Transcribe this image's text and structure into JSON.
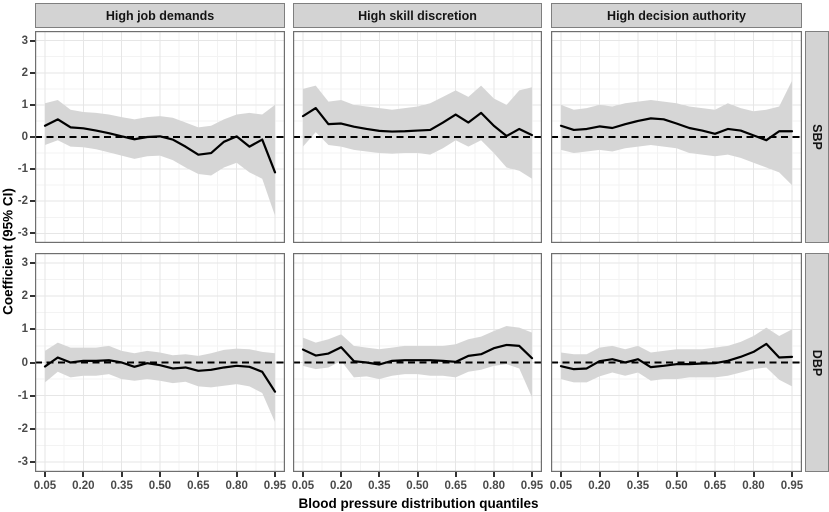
{
  "chart_data": {
    "type": "line",
    "description": "Faceted quantile-regression coefficient plot: black estimate line with gray 95% CI ribbon and dashed zero reference line, 2 facet rows x 3 facet columns",
    "xlabel": "Blood pressure distribution quantiles",
    "ylabel": "Coefficient (95% CI)",
    "facet_columns": [
      "High job demands",
      "High skill discretion",
      "High decision authority"
    ],
    "facet_rows": [
      "SBP",
      "DBP"
    ],
    "x_ticks": [
      "0.05",
      "0.20",
      "0.35",
      "0.50",
      "0.65",
      "0.80",
      "0.95"
    ],
    "x_tick_values": [
      0.05,
      0.2,
      0.35,
      0.5,
      0.65,
      0.8,
      0.95
    ],
    "y_ticks": [
      "3",
      "2",
      "1",
      "0",
      "-1",
      "-2",
      "-3"
    ],
    "y_tick_values": [
      3,
      2,
      1,
      0,
      -1,
      -2,
      -3
    ],
    "ylim": [
      -3.3,
      3.3
    ],
    "xlim": [
      0.05,
      0.95
    ],
    "reference_line_y": 0,
    "grid": true,
    "legend": "none",
    "quantiles": [
      0.05,
      0.1,
      0.15,
      0.2,
      0.25,
      0.3,
      0.35,
      0.4,
      0.45,
      0.5,
      0.55,
      0.6,
      0.65,
      0.7,
      0.75,
      0.8,
      0.85,
      0.9,
      0.95
    ],
    "panels": [
      {
        "facet_row": "SBP",
        "facet_column": "High job demands",
        "estimate": [
          0.35,
          0.55,
          0.3,
          0.27,
          0.2,
          0.12,
          0.02,
          -0.07,
          0.0,
          0.02,
          -0.08,
          -0.3,
          -0.55,
          -0.5,
          -0.15,
          0.02,
          -0.3,
          -0.08,
          -1.1
        ],
        "ci_upper": [
          1.05,
          1.15,
          0.85,
          0.78,
          0.75,
          0.7,
          0.62,
          0.55,
          0.62,
          0.65,
          0.6,
          0.45,
          0.3,
          0.35,
          0.55,
          0.7,
          0.75,
          0.7,
          1.0
        ],
        "ci_lower": [
          -0.25,
          -0.1,
          -0.3,
          -0.32,
          -0.38,
          -0.48,
          -0.58,
          -0.68,
          -0.6,
          -0.58,
          -0.72,
          -0.95,
          -1.15,
          -1.2,
          -0.95,
          -0.8,
          -1.1,
          -1.3,
          -2.45
        ]
      },
      {
        "facet_row": "SBP",
        "facet_column": "High skill discretion",
        "estimate": [
          0.65,
          0.9,
          0.4,
          0.42,
          0.32,
          0.25,
          0.19,
          0.17,
          0.18,
          0.2,
          0.22,
          0.45,
          0.7,
          0.45,
          0.75,
          0.35,
          0.03,
          0.25,
          0.06
        ],
        "ci_upper": [
          1.5,
          1.6,
          1.1,
          1.15,
          1.0,
          0.95,
          0.9,
          0.85,
          0.9,
          0.95,
          1.05,
          1.25,
          1.45,
          1.25,
          1.6,
          1.2,
          1.0,
          1.45,
          1.55
        ],
        "ci_lower": [
          -0.3,
          0.15,
          -0.25,
          -0.3,
          -0.4,
          -0.45,
          -0.5,
          -0.52,
          -0.5,
          -0.5,
          -0.55,
          -0.35,
          -0.1,
          -0.3,
          -0.1,
          -0.5,
          -0.95,
          -1.05,
          -1.3
        ]
      },
      {
        "facet_row": "SBP",
        "facet_column": "High decision authority",
        "estimate": [
          0.35,
          0.22,
          0.25,
          0.33,
          0.28,
          0.4,
          0.5,
          0.58,
          0.55,
          0.42,
          0.28,
          0.2,
          0.1,
          0.25,
          0.2,
          0.05,
          -0.1,
          0.18,
          0.18
        ],
        "ci_upper": [
          1.0,
          0.85,
          0.9,
          1.0,
          0.95,
          1.05,
          1.1,
          1.15,
          1.1,
          1.05,
          0.95,
          0.9,
          0.85,
          1.05,
          0.9,
          0.8,
          0.85,
          0.95,
          1.75
        ],
        "ci_lower": [
          -0.4,
          -0.5,
          -0.45,
          -0.4,
          -0.45,
          -0.35,
          -0.3,
          -0.25,
          -0.3,
          -0.35,
          -0.5,
          -0.55,
          -0.6,
          -0.55,
          -0.65,
          -0.8,
          -0.95,
          -1.1,
          -1.5
        ]
      },
      {
        "facet_row": "DBP",
        "facet_column": "High job demands",
        "estimate": [
          -0.12,
          0.15,
          0.0,
          0.05,
          0.05,
          0.07,
          0.0,
          -0.13,
          -0.02,
          -0.08,
          -0.18,
          -0.15,
          -0.25,
          -0.22,
          -0.15,
          -0.1,
          -0.13,
          -0.28,
          -0.88
        ],
        "ci_upper": [
          0.35,
          0.6,
          0.45,
          0.45,
          0.45,
          0.5,
          0.35,
          0.28,
          0.35,
          0.3,
          0.22,
          0.25,
          0.2,
          0.28,
          0.38,
          0.42,
          0.4,
          0.32,
          0.28
        ],
        "ci_lower": [
          -0.6,
          -0.28,
          -0.45,
          -0.4,
          -0.4,
          -0.35,
          -0.5,
          -0.55,
          -0.5,
          -0.55,
          -0.62,
          -0.58,
          -0.72,
          -0.75,
          -0.7,
          -0.65,
          -0.72,
          -0.92,
          -1.8
        ]
      },
      {
        "facet_row": "DBP",
        "facet_column": "High skill discretion",
        "estimate": [
          0.39,
          0.21,
          0.27,
          0.46,
          0.04,
          0.0,
          -0.06,
          0.05,
          0.07,
          0.07,
          0.07,
          0.05,
          0.02,
          0.2,
          0.25,
          0.43,
          0.53,
          0.5,
          0.13
        ],
        "ci_upper": [
          0.75,
          0.6,
          0.7,
          0.85,
          0.5,
          0.45,
          0.4,
          0.45,
          0.5,
          0.5,
          0.5,
          0.5,
          0.55,
          0.7,
          0.78,
          0.95,
          1.1,
          1.05,
          0.9
        ],
        "ci_lower": [
          -0.1,
          -0.2,
          -0.15,
          0.05,
          -0.45,
          -0.42,
          -0.5,
          -0.4,
          -0.35,
          -0.35,
          -0.4,
          -0.4,
          -0.45,
          -0.28,
          -0.22,
          -0.1,
          -0.05,
          -0.18,
          -1.05
        ]
      },
      {
        "facet_row": "DBP",
        "facet_column": "High decision authority",
        "estimate": [
          -0.11,
          -0.2,
          -0.18,
          0.04,
          0.1,
          0.0,
          0.1,
          -0.14,
          -0.1,
          -0.05,
          -0.05,
          -0.03,
          -0.02,
          0.05,
          0.17,
          0.32,
          0.56,
          0.15,
          0.17
        ],
        "ci_upper": [
          0.3,
          0.25,
          0.25,
          0.45,
          0.5,
          0.4,
          0.5,
          0.3,
          0.35,
          0.4,
          0.4,
          0.4,
          0.45,
          0.5,
          0.62,
          0.8,
          1.05,
          0.8,
          1.0
        ],
        "ci_lower": [
          -0.5,
          -0.6,
          -0.6,
          -0.42,
          -0.3,
          -0.4,
          -0.3,
          -0.55,
          -0.5,
          -0.5,
          -0.45,
          -0.45,
          -0.45,
          -0.4,
          -0.3,
          -0.2,
          -0.15,
          -0.52,
          -0.72
        ]
      }
    ],
    "colors": {
      "line": "#000000",
      "ribbon": "#d6d6d6",
      "reference_line": "#000000",
      "grid_major": "#e6e6e6",
      "grid_minor": "#f3f3f3",
      "strip_background": "#d3d3d3",
      "panel_border": "#6f6f6f",
      "tick_text": "#4a4a4a"
    }
  }
}
